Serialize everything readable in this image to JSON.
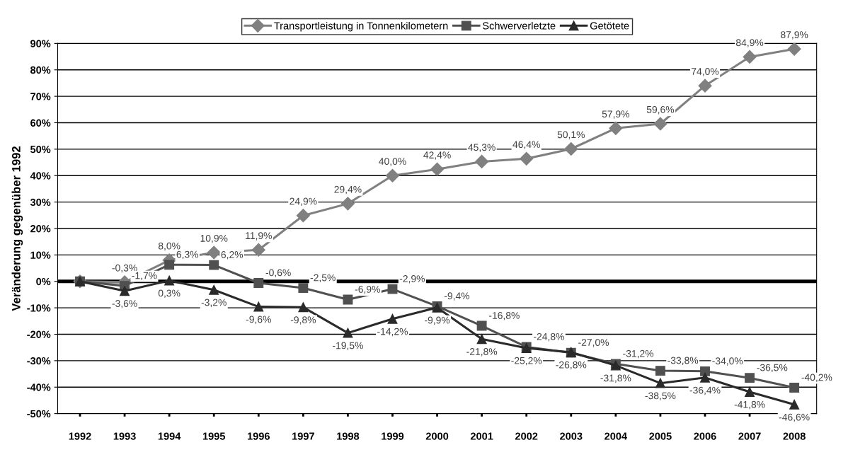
{
  "chart_data": {
    "type": "line",
    "ylabel": "Veränderung gegenüber 1992",
    "categories": [
      "1992",
      "1993",
      "1994",
      "1995",
      "1996",
      "1997",
      "1998",
      "1999",
      "2000",
      "2001",
      "2002",
      "2003",
      "2004",
      "2005",
      "2006",
      "2007",
      "2008"
    ],
    "series": [
      {
        "name": "Transportleistung in Tonnenkilometern",
        "color": "#808080",
        "marker": "diamond",
        "values": [
          0,
          -0.3,
          8.0,
          10.9,
          11.9,
          24.9,
          29.4,
          40.0,
          42.4,
          45.3,
          46.4,
          50.1,
          57.9,
          59.6,
          74.0,
          84.9,
          87.9
        ],
        "value_labels": [
          null,
          "-0,3%",
          "8,0%",
          "10,9%",
          "11,9%",
          "24,9%",
          "29,4%",
          "40,0%",
          "42,4%",
          "45,3%",
          "46,4%",
          "50,1%",
          "57,9%",
          "59,6%",
          "74,0%",
          "84,9%",
          "87,9%"
        ]
      },
      {
        "name": "Schwerverletzte",
        "color": "#505050",
        "marker": "square",
        "values": [
          0,
          -1.7,
          6.3,
          6.2,
          -0.6,
          -2.5,
          -6.9,
          -2.9,
          -9.4,
          -16.8,
          -24.8,
          -27.0,
          -31.2,
          -33.8,
          -34.0,
          -36.5,
          -40.2
        ],
        "value_labels": [
          null,
          "-1,7%",
          "6,3%",
          "6,2%",
          "-0,6%",
          "-2,5%",
          "-6,9%",
          "-2,9%",
          "-9,4%",
          "-16,8%",
          "-24,8%",
          "-27,0%",
          "-31,2%",
          "-33,8%",
          "-34,0%",
          "-36,5%",
          "-40,2%"
        ]
      },
      {
        "name": "Getötete",
        "color": "#2a2a2a",
        "marker": "triangle",
        "values": [
          0,
          -3.6,
          0.3,
          -3.2,
          -9.6,
          -9.8,
          -19.5,
          -14.2,
          -9.9,
          -21.8,
          -25.2,
          -26.8,
          -31.8,
          -38.5,
          -36.4,
          -41.8,
          -46.6
        ],
        "value_labels": [
          null,
          "-3,6%",
          "0,3%",
          "-3,2%",
          "-9,6%",
          "-9,8%",
          "-19,5%",
          "-14,2%",
          "-9,9%",
          "-21,8%",
          "-25,2%",
          "-26,8%",
          "-31,8%",
          "-38,5%",
          "-36,4%",
          "-41,8%",
          "-46,6%"
        ]
      }
    ],
    "ylim": [
      -50,
      90
    ],
    "yticks": [
      {
        "value": -50,
        "label": "-50%"
      },
      {
        "value": -40,
        "label": "-40%"
      },
      {
        "value": -30,
        "label": "-30%"
      },
      {
        "value": -20,
        "label": "-20%"
      },
      {
        "value": -10,
        "label": "-10%"
      },
      {
        "value": 0,
        "label": "0%"
      },
      {
        "value": 10,
        "label": "10%"
      },
      {
        "value": 20,
        "label": "20%"
      },
      {
        "value": 30,
        "label": "30%"
      },
      {
        "value": 40,
        "label": "40%"
      },
      {
        "value": 50,
        "label": "50%"
      },
      {
        "value": 60,
        "label": "60%"
      },
      {
        "value": 70,
        "label": "70%"
      },
      {
        "value": 80,
        "label": "80%"
      },
      {
        "value": 90,
        "label": "90%"
      }
    ],
    "ref_lines": [
      {
        "axis": "y",
        "value": 0,
        "color": "#000000"
      }
    ],
    "grid": "y",
    "legend": "top",
    "line_style": "solid"
  }
}
